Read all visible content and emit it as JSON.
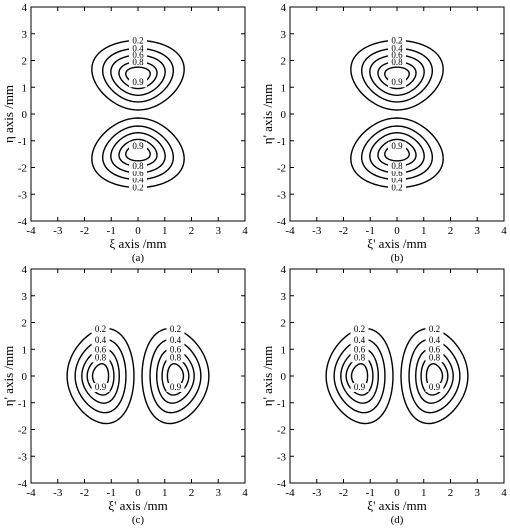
{
  "figure": {
    "panels": [
      {
        "caption": "(a)",
        "chart_data": {
          "type": "contour",
          "xlabel": "ξ axis /mm",
          "ylabel": "η axis /mm",
          "xlim": [
            -4,
            4
          ],
          "ylim": [
            -4,
            4
          ],
          "xticks": [
            "-4",
            "-3",
            "-2",
            "-1",
            "0",
            "1",
            "2",
            "3",
            "4"
          ],
          "yticks": [
            "-4",
            "-3",
            "-2",
            "-1",
            "0",
            "1",
            "2",
            "3",
            "4"
          ],
          "grid": false,
          "level_labels": [
            "0.2",
            "0.4",
            "0.6",
            "0.8",
            "0.9"
          ],
          "lobes": [
            {
              "center": [
                0,
                1.45
              ],
              "orientation": "horizontal",
              "levels": [
                {
                  "value": 0.2,
                  "half_width": 1.7,
                  "half_height": 1.3
                },
                {
                  "value": 0.4,
                  "half_width": 1.3,
                  "half_height": 1.0
                },
                {
                  "value": 0.6,
                  "half_width": 1.0,
                  "half_height": 0.75
                },
                {
                  "value": 0.8,
                  "half_width": 0.7,
                  "half_height": 0.5
                },
                {
                  "value": 0.9,
                  "half_width": 0.45,
                  "half_height": 0.3
                }
              ]
            },
            {
              "center": [
                0,
                -1.45
              ],
              "orientation": "horizontal",
              "levels": [
                {
                  "value": 0.2,
                  "half_width": 1.7,
                  "half_height": 1.3
                },
                {
                  "value": 0.4,
                  "half_width": 1.3,
                  "half_height": 1.0
                },
                {
                  "value": 0.6,
                  "half_width": 1.0,
                  "half_height": 0.75
                },
                {
                  "value": 0.8,
                  "half_width": 0.7,
                  "half_height": 0.5
                },
                {
                  "value": 0.9,
                  "half_width": 0.45,
                  "half_height": 0.3
                }
              ]
            }
          ]
        }
      },
      {
        "caption": "(b)",
        "chart_data": {
          "type": "contour",
          "xlabel": "ξ' axis /mm",
          "ylabel": "η' axis /mm",
          "xlim": [
            -4,
            4
          ],
          "ylim": [
            -4,
            4
          ],
          "xticks": [
            "-4",
            "-3",
            "-2",
            "-1",
            "0",
            "1",
            "2",
            "3",
            "4"
          ],
          "yticks": [
            "-4",
            "-3",
            "-2",
            "-1",
            "0",
            "1",
            "2",
            "3",
            "4"
          ],
          "grid": false,
          "level_labels": [
            "0.2",
            "0.4",
            "0.6",
            "0.8",
            "0.9"
          ],
          "lobes": [
            {
              "center": [
                0,
                1.45
              ],
              "orientation": "horizontal",
              "levels": [
                {
                  "value": 0.2,
                  "half_width": 1.7,
                  "half_height": 1.3
                },
                {
                  "value": 0.4,
                  "half_width": 1.3,
                  "half_height": 1.0
                },
                {
                  "value": 0.6,
                  "half_width": 1.0,
                  "half_height": 0.75
                },
                {
                  "value": 0.8,
                  "half_width": 0.7,
                  "half_height": 0.5
                },
                {
                  "value": 0.9,
                  "half_width": 0.45,
                  "half_height": 0.3
                }
              ]
            },
            {
              "center": [
                0,
                -1.45
              ],
              "orientation": "horizontal",
              "levels": [
                {
                  "value": 0.2,
                  "half_width": 1.7,
                  "half_height": 1.3
                },
                {
                  "value": 0.4,
                  "half_width": 1.3,
                  "half_height": 1.0
                },
                {
                  "value": 0.6,
                  "half_width": 1.0,
                  "half_height": 0.75
                },
                {
                  "value": 0.8,
                  "half_width": 0.7,
                  "half_height": 0.5
                },
                {
                  "value": 0.9,
                  "half_width": 0.45,
                  "half_height": 0.3
                }
              ]
            }
          ]
        }
      },
      {
        "caption": "(c)",
        "chart_data": {
          "type": "contour",
          "xlabel": "ξ' axis /mm",
          "ylabel": "η' axis /mm",
          "xlim": [
            -4,
            4
          ],
          "ylim": [
            -4,
            4
          ],
          "xticks": [
            "-4",
            "-3",
            "-2",
            "-1",
            "0",
            "1",
            "2",
            "3",
            "4"
          ],
          "yticks": [
            "-4",
            "-3",
            "-2",
            "-1",
            "0",
            "1",
            "2",
            "3",
            "4"
          ],
          "grid": false,
          "level_labels": [
            "0.2",
            "0.4",
            "0.6",
            "0.8",
            "0.9"
          ],
          "lobes": [
            {
              "center": [
                -1.4,
                0
              ],
              "orientation": "vertical",
              "levels": [
                {
                  "value": 0.2,
                  "half_width": 1.25,
                  "half_height": 1.75
                },
                {
                  "value": 0.4,
                  "half_width": 0.95,
                  "half_height": 1.35
                },
                {
                  "value": 0.6,
                  "half_width": 0.7,
                  "half_height": 1.0
                },
                {
                  "value": 0.8,
                  "half_width": 0.5,
                  "half_height": 0.7
                },
                {
                  "value": 0.9,
                  "half_width": 0.3,
                  "half_height": 0.45
                }
              ]
            },
            {
              "center": [
                1.4,
                0
              ],
              "orientation": "vertical",
              "levels": [
                {
                  "value": 0.2,
                  "half_width": 1.25,
                  "half_height": 1.75
                },
                {
                  "value": 0.4,
                  "half_width": 0.95,
                  "half_height": 1.35
                },
                {
                  "value": 0.6,
                  "half_width": 0.7,
                  "half_height": 1.0
                },
                {
                  "value": 0.8,
                  "half_width": 0.5,
                  "half_height": 0.7
                },
                {
                  "value": 0.9,
                  "half_width": 0.3,
                  "half_height": 0.45
                }
              ]
            }
          ]
        }
      },
      {
        "caption": "(d)",
        "chart_data": {
          "type": "contour",
          "xlabel": "ξ' axis /mm",
          "ylabel": "η' axis /mm",
          "xlim": [
            -4,
            4
          ],
          "ylim": [
            -4,
            4
          ],
          "xticks": [
            "-4",
            "-3",
            "-2",
            "-1",
            "0",
            "1",
            "2",
            "3",
            "4"
          ],
          "yticks": [
            "-4",
            "-3",
            "-2",
            "-1",
            "0",
            "1",
            "2",
            "3",
            "4"
          ],
          "grid": false,
          "level_labels": [
            "0.2",
            "0.4",
            "0.6",
            "0.8",
            "0.9"
          ],
          "lobes": [
            {
              "center": [
                -1.4,
                0
              ],
              "orientation": "vertical",
              "levels": [
                {
                  "value": 0.2,
                  "half_width": 1.25,
                  "half_height": 1.75
                },
                {
                  "value": 0.4,
                  "half_width": 0.95,
                  "half_height": 1.35
                },
                {
                  "value": 0.6,
                  "half_width": 0.7,
                  "half_height": 1.0
                },
                {
                  "value": 0.8,
                  "half_width": 0.5,
                  "half_height": 0.7
                },
                {
                  "value": 0.9,
                  "half_width": 0.3,
                  "half_height": 0.45
                }
              ]
            },
            {
              "center": [
                1.4,
                0
              ],
              "orientation": "vertical",
              "levels": [
                {
                  "value": 0.2,
                  "half_width": 1.25,
                  "half_height": 1.75
                },
                {
                  "value": 0.4,
                  "half_width": 0.95,
                  "half_height": 1.35
                },
                {
                  "value": 0.6,
                  "half_width": 0.7,
                  "half_height": 1.0
                },
                {
                  "value": 0.8,
                  "half_width": 0.5,
                  "half_height": 0.7
                },
                {
                  "value": 0.9,
                  "half_width": 0.3,
                  "half_height": 0.45
                }
              ]
            }
          ]
        }
      }
    ]
  }
}
